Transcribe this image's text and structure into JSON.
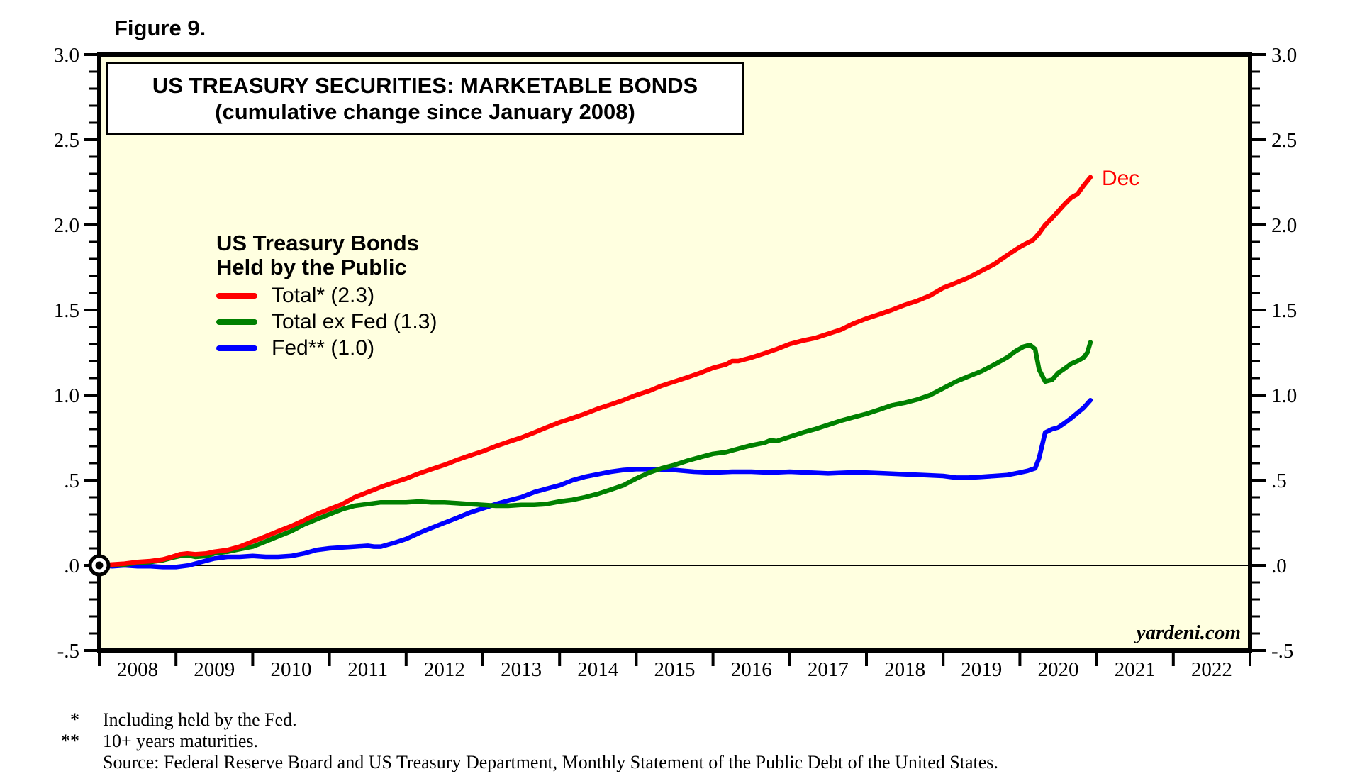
{
  "figure_label": "Figure 9.",
  "title_box": {
    "line1": "US TREASURY SECURITIES: MARKETABLE BONDS",
    "line2": "(cumulative change since January 2008)"
  },
  "legend": {
    "header_line1": "US Treasury Bonds",
    "header_line2": "Held by the Public",
    "items": [
      {
        "label": "Total* (2.3)",
        "color": "#ff0000"
      },
      {
        "label": "Total ex Fed (1.3)",
        "color": "#008000"
      },
      {
        "label": "Fed** (1.0)",
        "color": "#0000ff"
      }
    ]
  },
  "watermark": "yardeni.com",
  "footnotes": [
    {
      "marker": "*",
      "text": "Including held by the Fed."
    },
    {
      "marker": "**",
      "text": "10+ years maturities."
    },
    {
      "marker": "",
      "text": "Source: Federal Reserve Board and US Treasury Department, Monthly Statement of the Public Debt of the United States."
    }
  ],
  "chart_data": {
    "type": "line",
    "title": "US TREASURY SECURITIES: MARKETABLE BONDS (cumulative change since January 2008)",
    "plot_bg": "#ffffe0",
    "grid": false,
    "zero_line": 0.0,
    "y_axis": {
      "range": [
        -0.5,
        3.0
      ],
      "minor_step": 0.1,
      "major_ticks": [
        {
          "v": 3.0,
          "label": "3.0"
        },
        {
          "v": 2.5,
          "label": "2.5"
        },
        {
          "v": 2.0,
          "label": "2.0"
        },
        {
          "v": 1.5,
          "label": "1.5"
        },
        {
          "v": 1.0,
          "label": "1.0"
        },
        {
          "v": 0.5,
          "label": ".5"
        },
        {
          "v": 0.0,
          "label": ".0"
        },
        {
          "v": -0.5,
          "label": "-.5"
        }
      ],
      "labels_on_both_sides": true
    },
    "x_axis": {
      "range": [
        2008,
        2023
      ],
      "tick_step_years": 1,
      "year_labels": [
        "2008",
        "2009",
        "2010",
        "2011",
        "2012",
        "2013",
        "2014",
        "2015",
        "2016",
        "2017",
        "2018",
        "2019",
        "2020",
        "2021",
        "2022"
      ]
    },
    "origin_marker": {
      "x": 2008.0,
      "y": 0.0
    },
    "end_label": {
      "text": "Dec",
      "x": 2020.92,
      "y": 2.28,
      "color": "#ff0000"
    },
    "series": [
      {
        "id": "fed",
        "name": "Fed** (1.0)",
        "color": "#0000ff",
        "final_value": 1.0,
        "points": [
          [
            2008.0,
            0.0
          ],
          [
            2008.17,
            -0.005
          ],
          [
            2008.33,
            0.0
          ],
          [
            2008.5,
            -0.005
          ],
          [
            2008.67,
            -0.005
          ],
          [
            2008.83,
            -0.01
          ],
          [
            2009.0,
            -0.01
          ],
          [
            2009.17,
            0.0
          ],
          [
            2009.33,
            0.02
          ],
          [
            2009.5,
            0.04
          ],
          [
            2009.67,
            0.05
          ],
          [
            2009.83,
            0.05
          ],
          [
            2010.0,
            0.055
          ],
          [
            2010.17,
            0.05
          ],
          [
            2010.33,
            0.05
          ],
          [
            2010.5,
            0.055
          ],
          [
            2010.67,
            0.07
          ],
          [
            2010.83,
            0.09
          ],
          [
            2011.0,
            0.1
          ],
          [
            2011.17,
            0.105
          ],
          [
            2011.33,
            0.11
          ],
          [
            2011.5,
            0.115
          ],
          [
            2011.58,
            0.11
          ],
          [
            2011.67,
            0.11
          ],
          [
            2011.83,
            0.13
          ],
          [
            2012.0,
            0.155
          ],
          [
            2012.17,
            0.19
          ],
          [
            2012.33,
            0.22
          ],
          [
            2012.5,
            0.25
          ],
          [
            2012.67,
            0.28
          ],
          [
            2012.83,
            0.31
          ],
          [
            2013.0,
            0.335
          ],
          [
            2013.17,
            0.36
          ],
          [
            2013.33,
            0.38
          ],
          [
            2013.5,
            0.4
          ],
          [
            2013.67,
            0.43
          ],
          [
            2013.83,
            0.45
          ],
          [
            2014.0,
            0.47
          ],
          [
            2014.17,
            0.5
          ],
          [
            2014.33,
            0.52
          ],
          [
            2014.5,
            0.535
          ],
          [
            2014.67,
            0.55
          ],
          [
            2014.83,
            0.56
          ],
          [
            2015.0,
            0.565
          ],
          [
            2015.25,
            0.565
          ],
          [
            2015.5,
            0.56
          ],
          [
            2015.75,
            0.55
          ],
          [
            2016.0,
            0.545
          ],
          [
            2016.25,
            0.55
          ],
          [
            2016.5,
            0.55
          ],
          [
            2016.75,
            0.545
          ],
          [
            2017.0,
            0.55
          ],
          [
            2017.25,
            0.545
          ],
          [
            2017.5,
            0.54
          ],
          [
            2017.75,
            0.545
          ],
          [
            2018.0,
            0.545
          ],
          [
            2018.25,
            0.54
          ],
          [
            2018.5,
            0.535
          ],
          [
            2018.75,
            0.53
          ],
          [
            2019.0,
            0.525
          ],
          [
            2019.17,
            0.515
          ],
          [
            2019.33,
            0.515
          ],
          [
            2019.5,
            0.52
          ],
          [
            2019.67,
            0.525
          ],
          [
            2019.83,
            0.53
          ],
          [
            2020.0,
            0.545
          ],
          [
            2020.1,
            0.555
          ],
          [
            2020.2,
            0.57
          ],
          [
            2020.25,
            0.63
          ],
          [
            2020.33,
            0.78
          ],
          [
            2020.42,
            0.8
          ],
          [
            2020.5,
            0.81
          ],
          [
            2020.58,
            0.835
          ],
          [
            2020.67,
            0.865
          ],
          [
            2020.75,
            0.895
          ],
          [
            2020.83,
            0.925
          ],
          [
            2020.92,
            0.97
          ]
        ]
      },
      {
        "id": "total_ex_fed",
        "name": "Total ex Fed (1.3)",
        "color": "#008000",
        "final_value": 1.3,
        "points": [
          [
            2008.0,
            0.0
          ],
          [
            2008.17,
            0.0
          ],
          [
            2008.33,
            0.005
          ],
          [
            2008.5,
            0.015
          ],
          [
            2008.67,
            0.02
          ],
          [
            2008.83,
            0.03
          ],
          [
            2008.95,
            0.045
          ],
          [
            2009.05,
            0.055
          ],
          [
            2009.15,
            0.06
          ],
          [
            2009.25,
            0.05
          ],
          [
            2009.4,
            0.055
          ],
          [
            2009.5,
            0.07
          ],
          [
            2009.67,
            0.08
          ],
          [
            2009.83,
            0.095
          ],
          [
            2010.0,
            0.11
          ],
          [
            2010.17,
            0.14
          ],
          [
            2010.33,
            0.17
          ],
          [
            2010.5,
            0.2
          ],
          [
            2010.67,
            0.24
          ],
          [
            2010.83,
            0.27
          ],
          [
            2011.0,
            0.3
          ],
          [
            2011.17,
            0.33
          ],
          [
            2011.33,
            0.35
          ],
          [
            2011.5,
            0.36
          ],
          [
            2011.67,
            0.37
          ],
          [
            2011.83,
            0.37
          ],
          [
            2012.0,
            0.37
          ],
          [
            2012.17,
            0.375
          ],
          [
            2012.33,
            0.37
          ],
          [
            2012.5,
            0.37
          ],
          [
            2012.67,
            0.365
          ],
          [
            2012.83,
            0.36
          ],
          [
            2013.0,
            0.355
          ],
          [
            2013.17,
            0.35
          ],
          [
            2013.33,
            0.35
          ],
          [
            2013.5,
            0.355
          ],
          [
            2013.67,
            0.355
          ],
          [
            2013.83,
            0.36
          ],
          [
            2014.0,
            0.375
          ],
          [
            2014.17,
            0.385
          ],
          [
            2014.33,
            0.4
          ],
          [
            2014.5,
            0.42
          ],
          [
            2014.67,
            0.445
          ],
          [
            2014.83,
            0.47
          ],
          [
            2015.0,
            0.51
          ],
          [
            2015.17,
            0.545
          ],
          [
            2015.33,
            0.57
          ],
          [
            2015.5,
            0.59
          ],
          [
            2015.67,
            0.615
          ],
          [
            2015.83,
            0.635
          ],
          [
            2016.0,
            0.655
          ],
          [
            2016.17,
            0.665
          ],
          [
            2016.33,
            0.685
          ],
          [
            2016.5,
            0.705
          ],
          [
            2016.67,
            0.72
          ],
          [
            2016.75,
            0.735
          ],
          [
            2016.83,
            0.73
          ],
          [
            2017.0,
            0.755
          ],
          [
            2017.17,
            0.78
          ],
          [
            2017.33,
            0.8
          ],
          [
            2017.5,
            0.825
          ],
          [
            2017.67,
            0.85
          ],
          [
            2017.83,
            0.87
          ],
          [
            2018.0,
            0.89
          ],
          [
            2018.17,
            0.915
          ],
          [
            2018.33,
            0.94
          ],
          [
            2018.5,
            0.955
          ],
          [
            2018.67,
            0.975
          ],
          [
            2018.83,
            1.0
          ],
          [
            2019.0,
            1.04
          ],
          [
            2019.17,
            1.08
          ],
          [
            2019.33,
            1.11
          ],
          [
            2019.5,
            1.14
          ],
          [
            2019.67,
            1.18
          ],
          [
            2019.83,
            1.22
          ],
          [
            2019.95,
            1.26
          ],
          [
            2020.05,
            1.285
          ],
          [
            2020.13,
            1.295
          ],
          [
            2020.2,
            1.27
          ],
          [
            2020.25,
            1.15
          ],
          [
            2020.33,
            1.08
          ],
          [
            2020.42,
            1.09
          ],
          [
            2020.5,
            1.13
          ],
          [
            2020.58,
            1.155
          ],
          [
            2020.67,
            1.185
          ],
          [
            2020.75,
            1.2
          ],
          [
            2020.83,
            1.22
          ],
          [
            2020.88,
            1.25
          ],
          [
            2020.92,
            1.31
          ]
        ]
      },
      {
        "id": "total",
        "name": "Total* (2.3)",
        "color": "#ff0000",
        "final_value": 2.3,
        "points": [
          [
            2008.0,
            0.0
          ],
          [
            2008.17,
            0.005
          ],
          [
            2008.33,
            0.01
          ],
          [
            2008.5,
            0.02
          ],
          [
            2008.67,
            0.025
          ],
          [
            2008.83,
            0.035
          ],
          [
            2008.95,
            0.05
          ],
          [
            2009.05,
            0.065
          ],
          [
            2009.15,
            0.07
          ],
          [
            2009.25,
            0.065
          ],
          [
            2009.4,
            0.07
          ],
          [
            2009.5,
            0.08
          ],
          [
            2009.67,
            0.09
          ],
          [
            2009.83,
            0.11
          ],
          [
            2010.0,
            0.14
          ],
          [
            2010.17,
            0.17
          ],
          [
            2010.33,
            0.2
          ],
          [
            2010.5,
            0.23
          ],
          [
            2010.67,
            0.265
          ],
          [
            2010.83,
            0.3
          ],
          [
            2011.0,
            0.33
          ],
          [
            2011.17,
            0.36
          ],
          [
            2011.33,
            0.4
          ],
          [
            2011.5,
            0.43
          ],
          [
            2011.67,
            0.46
          ],
          [
            2011.83,
            0.485
          ],
          [
            2012.0,
            0.51
          ],
          [
            2012.17,
            0.54
          ],
          [
            2012.33,
            0.565
          ],
          [
            2012.5,
            0.59
          ],
          [
            2012.67,
            0.62
          ],
          [
            2012.83,
            0.645
          ],
          [
            2013.0,
            0.67
          ],
          [
            2013.17,
            0.7
          ],
          [
            2013.33,
            0.725
          ],
          [
            2013.5,
            0.75
          ],
          [
            2013.67,
            0.78
          ],
          [
            2013.83,
            0.81
          ],
          [
            2014.0,
            0.84
          ],
          [
            2014.17,
            0.865
          ],
          [
            2014.33,
            0.89
          ],
          [
            2014.5,
            0.92
          ],
          [
            2014.67,
            0.945
          ],
          [
            2014.83,
            0.97
          ],
          [
            2015.0,
            1.0
          ],
          [
            2015.17,
            1.025
          ],
          [
            2015.33,
            1.055
          ],
          [
            2015.5,
            1.08
          ],
          [
            2015.67,
            1.105
          ],
          [
            2015.83,
            1.13
          ],
          [
            2016.0,
            1.16
          ],
          [
            2016.17,
            1.18
          ],
          [
            2016.25,
            1.2
          ],
          [
            2016.33,
            1.2
          ],
          [
            2016.5,
            1.22
          ],
          [
            2016.67,
            1.245
          ],
          [
            2016.83,
            1.27
          ],
          [
            2017.0,
            1.3
          ],
          [
            2017.17,
            1.32
          ],
          [
            2017.33,
            1.335
          ],
          [
            2017.5,
            1.36
          ],
          [
            2017.67,
            1.385
          ],
          [
            2017.83,
            1.42
          ],
          [
            2018.0,
            1.45
          ],
          [
            2018.17,
            1.475
          ],
          [
            2018.33,
            1.5
          ],
          [
            2018.5,
            1.53
          ],
          [
            2018.67,
            1.555
          ],
          [
            2018.83,
            1.585
          ],
          [
            2019.0,
            1.63
          ],
          [
            2019.17,
            1.66
          ],
          [
            2019.33,
            1.69
          ],
          [
            2019.5,
            1.73
          ],
          [
            2019.67,
            1.77
          ],
          [
            2019.83,
            1.82
          ],
          [
            2020.0,
            1.87
          ],
          [
            2020.08,
            1.89
          ],
          [
            2020.17,
            1.91
          ],
          [
            2020.25,
            1.95
          ],
          [
            2020.33,
            2.0
          ],
          [
            2020.42,
            2.04
          ],
          [
            2020.5,
            2.08
          ],
          [
            2020.58,
            2.12
          ],
          [
            2020.67,
            2.16
          ],
          [
            2020.75,
            2.18
          ],
          [
            2020.83,
            2.23
          ],
          [
            2020.92,
            2.28
          ]
        ]
      }
    ]
  }
}
